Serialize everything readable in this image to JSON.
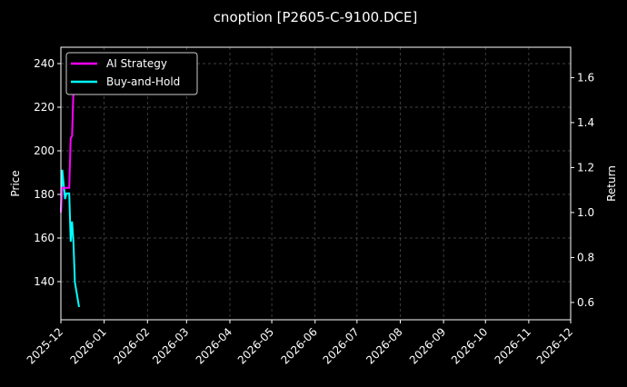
{
  "chart_data": {
    "type": "line",
    "title": "cnoption [P2605-C-9100.DCE]",
    "ylabel_left": "Price",
    "ylabel_right": "Return",
    "xlabel": "",
    "x_ticks": [
      "2025-12",
      "2026-01",
      "2026-02",
      "2026-03",
      "2026-04",
      "2026-05",
      "2026-06",
      "2026-07",
      "2026-08",
      "2026-09",
      "2026-10",
      "2026-11",
      "2026-12"
    ],
    "xlim": [
      "2025-12-01",
      "2026-12-01"
    ],
    "y_left_ticks": [
      140,
      160,
      180,
      200,
      220,
      240
    ],
    "ylim_left": [
      122.5,
      247.5
    ],
    "y_right_ticks": [
      0.6,
      0.8,
      1.0,
      1.2,
      1.4,
      1.6
    ],
    "ylim_right": [
      0.523,
      1.735
    ],
    "grid": true,
    "legend_position": "top-left",
    "background": "#000000",
    "series": [
      {
        "name": "AI Strategy",
        "axis": "right",
        "color": "#ff00ff",
        "x": [
          "2025-12-01",
          "2025-12-02",
          "2025-12-04",
          "2025-12-07",
          "2025-12-08",
          "2025-12-09",
          "2025-12-10",
          "2025-12-11"
        ],
        "values": [
          1.0,
          1.11,
          1.11,
          1.11,
          1.33,
          1.34,
          1.54,
          1.68
        ]
      },
      {
        "name": "Buy-and-Hold",
        "axis": "right",
        "color": "#00ffff",
        "x": [
          "2025-12-01",
          "2025-12-02",
          "2025-12-04",
          "2025-12-05",
          "2025-12-07",
          "2025-12-08",
          "2025-12-09",
          "2025-12-10",
          "2025-12-11",
          "2025-12-14"
        ],
        "values": [
          1.0,
          1.19,
          1.06,
          1.085,
          1.085,
          0.87,
          0.96,
          0.87,
          0.69,
          0.58
        ]
      }
    ]
  }
}
